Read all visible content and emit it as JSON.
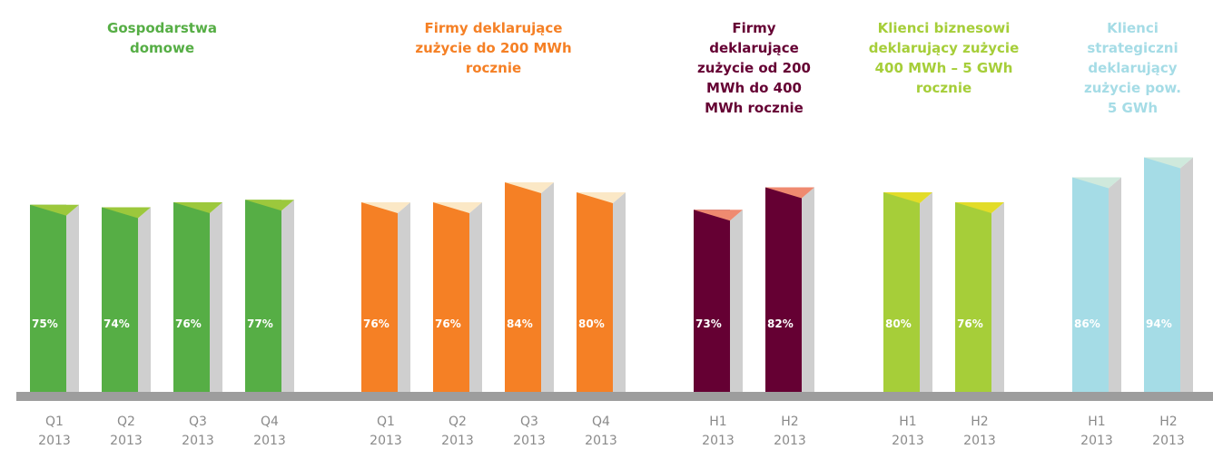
{
  "chart_data": [
    {
      "type": "bar",
      "title": "Gospodarstwa domowe",
      "categories": [
        "Q1 2013",
        "Q2 2013",
        "Q3 2013",
        "Q4 2013"
      ],
      "values": [
        75,
        74,
        76,
        77
      ],
      "value_labels": [
        "75%",
        "74%",
        "76%",
        "77%"
      ],
      "color": "#56ae45",
      "top_color": "#9cc83c"
    },
    {
      "type": "bar",
      "title": "Firmy deklarujące zużycie do 200 MWh rocznie",
      "categories": [
        "Q1 2013",
        "Q2 2013",
        "Q3 2013",
        "Q4 2013"
      ],
      "values": [
        76,
        76,
        84,
        80
      ],
      "value_labels": [
        "76%",
        "76%",
        "84%",
        "80%"
      ],
      "color": "#f58025",
      "top_color": "#fbe8c6"
    },
    {
      "type": "bar",
      "title": "Firmy deklarujące zużycie od 200 MWh do 400 MWh rocznie",
      "categories": [
        "H1 2013",
        "H2 2013"
      ],
      "values": [
        73,
        82
      ],
      "value_labels": [
        "73%",
        "82%"
      ],
      "color": "#650033",
      "top_color": "#ef8a70"
    },
    {
      "type": "bar",
      "title": "Klienci biznesowi deklarujący zużycie 400 MWh – 5 GWh rocznie",
      "categories": [
        "H1 2013",
        "H2 2013"
      ],
      "values": [
        80,
        76
      ],
      "value_labels": [
        "80%",
        "76%"
      ],
      "color": "#a6ce39",
      "top_color": "#e2dc28"
    },
    {
      "type": "bar",
      "title": "Klienci strategiczni deklarujący zużycie pow. 5 GWh",
      "categories": [
        "H1 2013",
        "H2 2013"
      ],
      "values": [
        86,
        94
      ],
      "value_labels": [
        "86%",
        "94%"
      ],
      "color": "#a5dce6",
      "top_color": "#cfe9dc"
    }
  ]
}
